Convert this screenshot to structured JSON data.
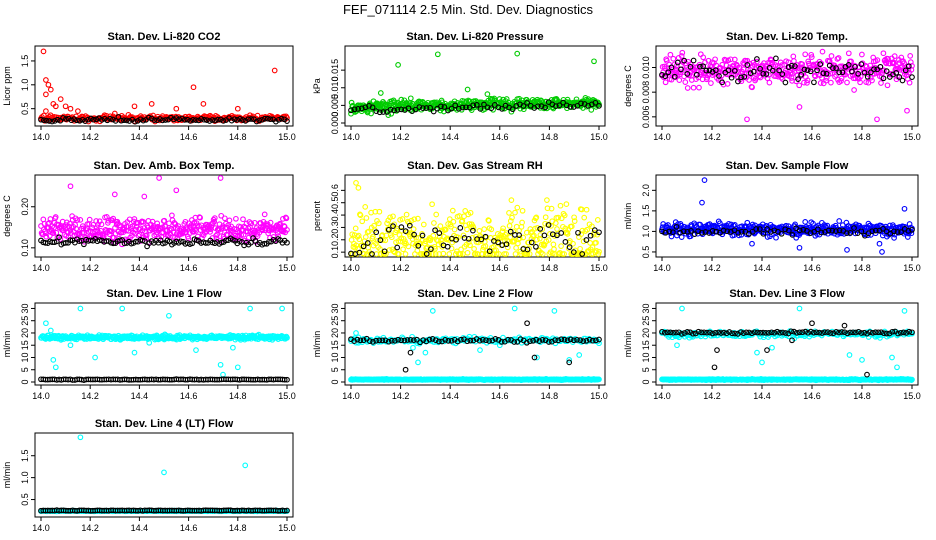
{
  "figure": {
    "title": "FEF_071114  2.5 Min. Std. Dev. Diagnostics"
  },
  "chart_data": [
    {
      "type": "scatter",
      "title": "Stan. Dev. Li-820 CO2",
      "xlabel": "",
      "ylabel": "Licor ppm",
      "xlim": [
        14.0,
        15.0
      ],
      "ylim": [
        0.2,
        1.75
      ],
      "xticks": [
        "14.0",
        "14.2",
        "14.4",
        "14.6",
        "14.8",
        "15.0"
      ],
      "yticks": [
        {
          "v": 0.5,
          "label": "0.5"
        },
        {
          "v": 1.0,
          "label": "1.0"
        },
        {
          "v": 1.5,
          "label": "1.5"
        }
      ],
      "series": [
        {
          "color": "#ff0000",
          "base": 0.3,
          "noise": 0.04,
          "count": 260,
          "outliers": [
            [
              14.01,
              1.7
            ],
            [
              14.02,
              1.1
            ],
            [
              14.03,
              1.0
            ],
            [
              14.02,
              0.8
            ],
            [
              14.05,
              0.6
            ],
            [
              14.06,
              0.55
            ],
            [
              14.08,
              0.7
            ],
            [
              14.1,
              0.55
            ],
            [
              14.12,
              0.5
            ],
            [
              14.04,
              0.9
            ],
            [
              14.15,
              0.45
            ],
            [
              14.3,
              0.4
            ],
            [
              14.45,
              0.6
            ],
            [
              14.55,
              0.5
            ],
            [
              14.62,
              0.95
            ],
            [
              14.66,
              0.6
            ],
            [
              14.8,
              0.5
            ],
            [
              14.95,
              1.3
            ],
            [
              14.02,
              0.45
            ],
            [
              14.38,
              0.55
            ]
          ]
        },
        {
          "color": "#000000",
          "base": 0.27,
          "noise": 0.03,
          "count": 90,
          "outliers": []
        }
      ]
    },
    {
      "type": "scatter",
      "title": "Stan. Dev. Li-820 Pressure",
      "xlabel": "",
      "ylabel": "kPa",
      "xlim": [
        14.0,
        15.0
      ],
      "ylim": [
        0.0,
        0.021
      ],
      "xticks": [
        "14.0",
        "14.2",
        "14.4",
        "14.6",
        "14.8",
        "15.0"
      ],
      "yticks": [
        {
          "v": 0.0,
          "label": "0.000"
        },
        {
          "v": 0.005,
          "label": "0.005"
        },
        {
          "v": 0.01,
          "label": "0.010"
        },
        {
          "v": 0.015,
          "label": "0.015"
        }
      ],
      "series": [
        {
          "color": "#00cc00",
          "base": 0.0045,
          "trend": 0.0012,
          "noise": 0.0012,
          "count": 420,
          "outliers": [
            [
              14.19,
              0.0165
            ],
            [
              14.35,
              0.0195
            ],
            [
              14.47,
              0.0095
            ],
            [
              14.67,
              0.0197
            ],
            [
              14.98,
              0.0175
            ],
            [
              14.12,
              0.0085
            ],
            [
              14.55,
              0.0082
            ]
          ]
        },
        {
          "color": "#000000",
          "base": 0.0038,
          "trend": 0.0015,
          "noise": 0.0007,
          "count": 70,
          "outliers": []
        }
      ]
    },
    {
      "type": "scatter",
      "title": "Stan. Dev. Li-820 Temp.",
      "xlabel": "",
      "ylabel": "degrees C",
      "xlim": [
        14.0,
        15.0
      ],
      "ylim": [
        0.0055,
        0.0115
      ],
      "xticks": [
        "14.0",
        "14.2",
        "14.4",
        "14.6",
        "14.8",
        "15.0"
      ],
      "yticks": [
        {
          "v": 0.006,
          "label": "0.006"
        },
        {
          "v": 0.008,
          "label": "0.008"
        },
        {
          "v": 0.01,
          "label": "0.010"
        }
      ],
      "series": [
        {
          "color": "#ff00ff",
          "base": 0.0098,
          "noise": 0.0008,
          "count": 420,
          "outliers": [
            [
              14.34,
              0.0058
            ],
            [
              14.86,
              0.0058
            ],
            [
              14.98,
              0.0065
            ],
            [
              14.55,
              0.0068
            ]
          ]
        },
        {
          "color": "#000000",
          "base": 0.0097,
          "noise": 0.0006,
          "count": 80,
          "outliers": []
        }
      ]
    },
    {
      "type": "scatter",
      "title": "Stan. Dev. Amb. Box Temp.",
      "xlabel": "",
      "ylabel": "degrees C",
      "xlim": [
        14.0,
        15.0
      ],
      "ylim": [
        0.085,
        0.27
      ],
      "xticks": [
        "14.0",
        "14.2",
        "14.4",
        "14.6",
        "14.8",
        "15.0"
      ],
      "yticks": [
        {
          "v": 0.1,
          "label": "0.10"
        },
        {
          "v": 0.2,
          "label": "0.20"
        }
      ],
      "series": [
        {
          "color": "#ff00ff",
          "base": 0.145,
          "noise": 0.02,
          "count": 420,
          "outliers": [
            [
              14.12,
              0.25
            ],
            [
              14.48,
              0.27
            ],
            [
              14.73,
              0.27
            ],
            [
              14.55,
              0.24
            ],
            [
              14.3,
              0.23
            ],
            [
              14.42,
              0.225
            ]
          ]
        },
        {
          "color": "#000000",
          "base": 0.115,
          "noise": 0.006,
          "count": 110,
          "outliers": []
        }
      ]
    },
    {
      "type": "scatter",
      "title": "Stan. Dev. Gas Stream RH",
      "xlabel": "",
      "ylabel": "percent",
      "xlim": [
        14.0,
        15.0
      ],
      "ylim": [
        0.085,
        0.7
      ],
      "xticks": [
        "14.0",
        "14.2",
        "14.4",
        "14.6",
        "14.8",
        "15.0"
      ],
      "yticks": [
        {
          "v": 0.1,
          "label": "0.1"
        },
        {
          "v": 0.2,
          "label": "0.2"
        },
        {
          "v": 0.3,
          "label": "0.3"
        },
        {
          "v": 0.4,
          "label": "0.4"
        },
        {
          "v": 0.5,
          "label": "0.5"
        },
        {
          "v": 0.6,
          "label": "0.6"
        }
      ],
      "series": [
        {
          "color": "#ffff00",
          "base": 0.2,
          "noise": 0.18,
          "count": 420,
          "outliers": [
            [
              14.02,
              0.66
            ],
            [
              14.03,
              0.62
            ]
          ]
        },
        {
          "color": "#000000",
          "base": 0.2,
          "noise": 0.12,
          "count": 60,
          "outliers": []
        }
      ]
    },
    {
      "type": "scatter",
      "title": "Stan. Dev. Sample Flow",
      "xlabel": "",
      "ylabel": "ml/min",
      "xlim": [
        14.0,
        15.0
      ],
      "ylim": [
        0.45,
        2.3
      ],
      "xticks": [
        "14.0",
        "14.2",
        "14.4",
        "14.6",
        "14.8",
        "15.0"
      ],
      "yticks": [
        {
          "v": 0.5,
          "label": "0.5"
        },
        {
          "v": 1.0,
          "label": "1.0"
        },
        {
          "v": 1.5,
          "label": "1.5"
        },
        {
          "v": 2.0,
          "label": "2.0"
        }
      ],
      "series": [
        {
          "color": "#0000ff",
          "base": 1.05,
          "noise": 0.12,
          "count": 420,
          "outliers": [
            [
              14.17,
              2.25
            ],
            [
              14.16,
              1.7
            ],
            [
              14.55,
              0.6
            ],
            [
              14.74,
              0.55
            ],
            [
              14.88,
              0.5
            ],
            [
              14.87,
              0.7
            ],
            [
              14.36,
              0.7
            ],
            [
              14.97,
              1.55
            ]
          ]
        },
        {
          "color": "#000000",
          "base": 1.0,
          "noise": 0.06,
          "count": 70,
          "outliers": []
        }
      ]
    },
    {
      "type": "scatter",
      "title": "Stan. Dev. Line 1 Flow",
      "xlabel": "",
      "ylabel": "ml/min",
      "xlim": [
        14.0,
        15.0
      ],
      "ylim": [
        0.0,
        31.0
      ],
      "xticks": [
        "14.0",
        "14.2",
        "14.4",
        "14.6",
        "14.8",
        "15.0"
      ],
      "yticks": [
        {
          "v": 0,
          "label": "0"
        },
        {
          "v": 5,
          "label": "5"
        },
        {
          "v": 10,
          "label": "10"
        },
        {
          "v": 15,
          "label": "15"
        },
        {
          "v": 20,
          "label": "20"
        },
        {
          "v": 25,
          "label": "25"
        },
        {
          "v": 30,
          "label": "30"
        }
      ],
      "series": [
        {
          "color": "#00ffff",
          "base": 18.2,
          "noise": 0.6,
          "count": 420,
          "outliers": [
            [
              14.02,
              24
            ],
            [
              14.04,
              21
            ],
            [
              14.05,
              9
            ],
            [
              14.06,
              6
            ],
            [
              14.12,
              15
            ],
            [
              14.16,
              30
            ],
            [
              14.33,
              30
            ],
            [
              14.38,
              12
            ],
            [
              14.44,
              16
            ],
            [
              14.52,
              27
            ],
            [
              14.63,
              13
            ],
            [
              14.73,
              7
            ],
            [
              14.74,
              3
            ],
            [
              14.78,
              14
            ],
            [
              14.8,
              6
            ],
            [
              14.85,
              30
            ],
            [
              14.98,
              30
            ],
            [
              14.22,
              10
            ]
          ]
        },
        {
          "color": "#000000",
          "base": 1.0,
          "noise": 0.1,
          "count": 110,
          "outliers": []
        }
      ]
    },
    {
      "type": "scatter",
      "title": "Stan. Dev. Line 2 Flow",
      "xlabel": "",
      "ylabel": "ml/min",
      "xlim": [
        14.0,
        15.0
      ],
      "ylim": [
        0.0,
        31.0
      ],
      "xticks": [
        "14.0",
        "14.2",
        "14.4",
        "14.6",
        "14.8",
        "15.0"
      ],
      "yticks": [
        {
          "v": 0,
          "label": "0"
        },
        {
          "v": 5,
          "label": "5"
        },
        {
          "v": 10,
          "label": "10"
        },
        {
          "v": 15,
          "label": "15"
        },
        {
          "v": 20,
          "label": "20"
        },
        {
          "v": 25,
          "label": "25"
        },
        {
          "v": 30,
          "label": "30"
        }
      ],
      "series": [
        {
          "color": "#00ffff",
          "base": 1.0,
          "noise": 0.15,
          "count": 420,
          "outliers": [
            [
              14.02,
              20
            ],
            [
              14.03,
              16
            ],
            [
              14.25,
              14
            ],
            [
              14.27,
              8
            ],
            [
              14.3,
              12
            ],
            [
              14.33,
              29
            ],
            [
              14.52,
              13
            ],
            [
              14.6,
              15
            ],
            [
              14.66,
              30
            ],
            [
              14.75,
              10
            ],
            [
              14.82,
              29
            ],
            [
              14.88,
              9
            ],
            [
              14.92,
              11
            ]
          ]
        },
        {
          "color": "#00ffff",
          "base": 17.0,
          "noise": 0.8,
          "count": 200,
          "outliers": []
        },
        {
          "color": "#000000",
          "base": 17.0,
          "noise": 0.5,
          "count": 80,
          "outliers": [
            [
              14.22,
              5
            ],
            [
              14.24,
              12
            ],
            [
              14.71,
              24
            ],
            [
              14.74,
              10
            ],
            [
              14.88,
              8
            ]
          ]
        }
      ]
    },
    {
      "type": "scatter",
      "title": "Stan. Dev. Line 3 Flow",
      "xlabel": "",
      "ylabel": "ml/min",
      "xlim": [
        14.0,
        15.0
      ],
      "ylim": [
        0.0,
        31.0
      ],
      "xticks": [
        "14.0",
        "14.2",
        "14.4",
        "14.6",
        "14.8",
        "15.0"
      ],
      "yticks": [
        {
          "v": 0,
          "label": "0"
        },
        {
          "v": 5,
          "label": "5"
        },
        {
          "v": 10,
          "label": "10"
        },
        {
          "v": 15,
          "label": "15"
        },
        {
          "v": 20,
          "label": "20"
        },
        {
          "v": 25,
          "label": "25"
        },
        {
          "v": 30,
          "label": "30"
        }
      ],
      "series": [
        {
          "color": "#00ffff",
          "base": 1.0,
          "noise": 0.15,
          "count": 420,
          "outliers": [
            [
              14.04,
              20
            ],
            [
              14.06,
              15
            ],
            [
              14.08,
              30
            ],
            [
              14.38,
              12
            ],
            [
              14.4,
              8
            ],
            [
              14.44,
              14
            ],
            [
              14.55,
              30
            ],
            [
              14.75,
              11
            ],
            [
              14.8,
              9
            ],
            [
              14.92,
              10
            ],
            [
              14.94,
              6
            ],
            [
              14.97,
              29
            ]
          ]
        },
        {
          "color": "#00ffff",
          "base": 19.5,
          "noise": 0.8,
          "count": 220,
          "outliers": []
        },
        {
          "color": "#000000",
          "base": 20.2,
          "noise": 0.4,
          "count": 90,
          "outliers": [
            [
              14.21,
              6
            ],
            [
              14.22,
              13
            ],
            [
              14.42,
              13
            ],
            [
              14.52,
              17
            ],
            [
              14.6,
              24
            ],
            [
              14.73,
              23
            ],
            [
              14.82,
              3
            ]
          ]
        }
      ]
    },
    {
      "type": "scatter",
      "title": "Stan. Dev. Line 4 (LT) Flow",
      "xlabel": "",
      "ylabel": "ml/min",
      "xlim": [
        14.0,
        15.0
      ],
      "ylim": [
        0.17,
        1.95
      ],
      "xticks": [
        "14.0",
        "14.2",
        "14.4",
        "14.6",
        "14.8",
        "15.0"
      ],
      "yticks": [
        {
          "v": 0.5,
          "label": "0.5"
        },
        {
          "v": 1.0,
          "label": "1.0"
        },
        {
          "v": 1.5,
          "label": "1.5"
        }
      ],
      "series": [
        {
          "color": "#00ffff",
          "base": 0.24,
          "noise": 0.006,
          "count": 420,
          "outliers": [
            [
              14.16,
              1.92
            ],
            [
              14.5,
              1.12
            ],
            [
              14.83,
              1.28
            ]
          ]
        },
        {
          "color": "#000000",
          "base": 0.25,
          "noise": 0.005,
          "count": 110,
          "outliers": []
        }
      ]
    }
  ]
}
